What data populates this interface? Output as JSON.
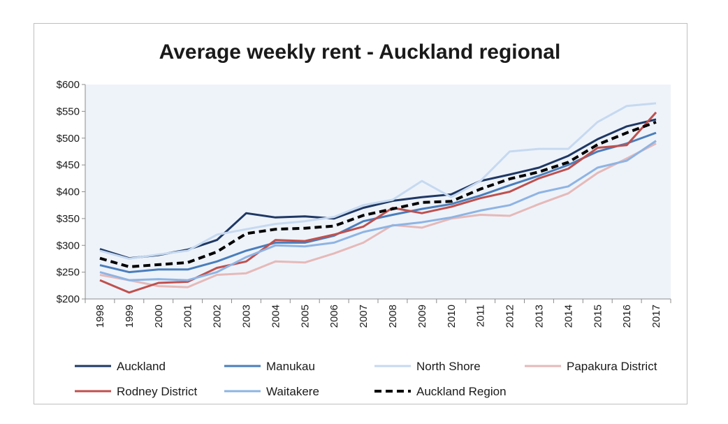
{
  "chart_data": {
    "type": "line",
    "title": "Average weekly rent - Auckland regional",
    "xlabel": "",
    "ylabel": "",
    "ylim": [
      200,
      600
    ],
    "ytick_values": [
      200,
      250,
      300,
      350,
      400,
      450,
      500,
      550,
      600
    ],
    "ytick_labels": [
      "$200",
      "$250",
      "$300",
      "$350",
      "$400",
      "$450",
      "$500",
      "$550",
      "$600"
    ],
    "categories": [
      "1998",
      "1999",
      "2000",
      "2001",
      "2002",
      "2003",
      "2004",
      "2005",
      "2006",
      "2007",
      "2008",
      "2009",
      "2010",
      "2011",
      "2012",
      "2013",
      "2014",
      "2015",
      "2016",
      "2017"
    ],
    "series": [
      {
        "name": "Auckland",
        "color": "#1f3864",
        "dash": "solid",
        "values": [
          293,
          276,
          282,
          292,
          310,
          360,
          352,
          354,
          350,
          370,
          383,
          390,
          395,
          420,
          432,
          445,
          467,
          498,
          522,
          535
        ]
      },
      {
        "name": "Manukau",
        "color": "#4a7ebb",
        "dash": "solid",
        "values": [
          263,
          250,
          255,
          255,
          270,
          290,
          305,
          305,
          318,
          345,
          357,
          368,
          377,
          393,
          412,
          430,
          450,
          475,
          490,
          510
        ]
      },
      {
        "name": "North Shore",
        "color": "#c6d9f0",
        "dash": "solid",
        "values": [
          290,
          275,
          283,
          290,
          320,
          330,
          340,
          345,
          353,
          375,
          385,
          420,
          390,
          420,
          475,
          480,
          480,
          530,
          560,
          565
        ]
      },
      {
        "name": "Papakura District",
        "color": "#e6b9b8",
        "dash": "solid",
        "values": [
          245,
          235,
          224,
          222,
          245,
          248,
          270,
          268,
          285,
          305,
          338,
          333,
          350,
          357,
          355,
          377,
          397,
          435,
          462,
          490
        ]
      },
      {
        "name": "Rodney District",
        "color": "#c0504d",
        "dash": "solid",
        "values": [
          235,
          212,
          230,
          232,
          258,
          270,
          310,
          308,
          320,
          335,
          370,
          360,
          372,
          388,
          400,
          425,
          443,
          482,
          487,
          548
        ]
      },
      {
        "name": "Waitakere",
        "color": "#8eb4e3",
        "dash": "solid",
        "values": [
          250,
          235,
          237,
          235,
          250,
          278,
          300,
          298,
          305,
          325,
          337,
          343,
          352,
          365,
          375,
          398,
          410,
          445,
          458,
          495
        ]
      },
      {
        "name": "Auckland Region",
        "color": "#000000",
        "dash": "dashed",
        "values": [
          276,
          260,
          264,
          268,
          288,
          322,
          330,
          332,
          336,
          356,
          368,
          380,
          382,
          405,
          424,
          437,
          455,
          488,
          510,
          530
        ]
      }
    ],
    "grid": false,
    "legend_position": "bottom"
  }
}
